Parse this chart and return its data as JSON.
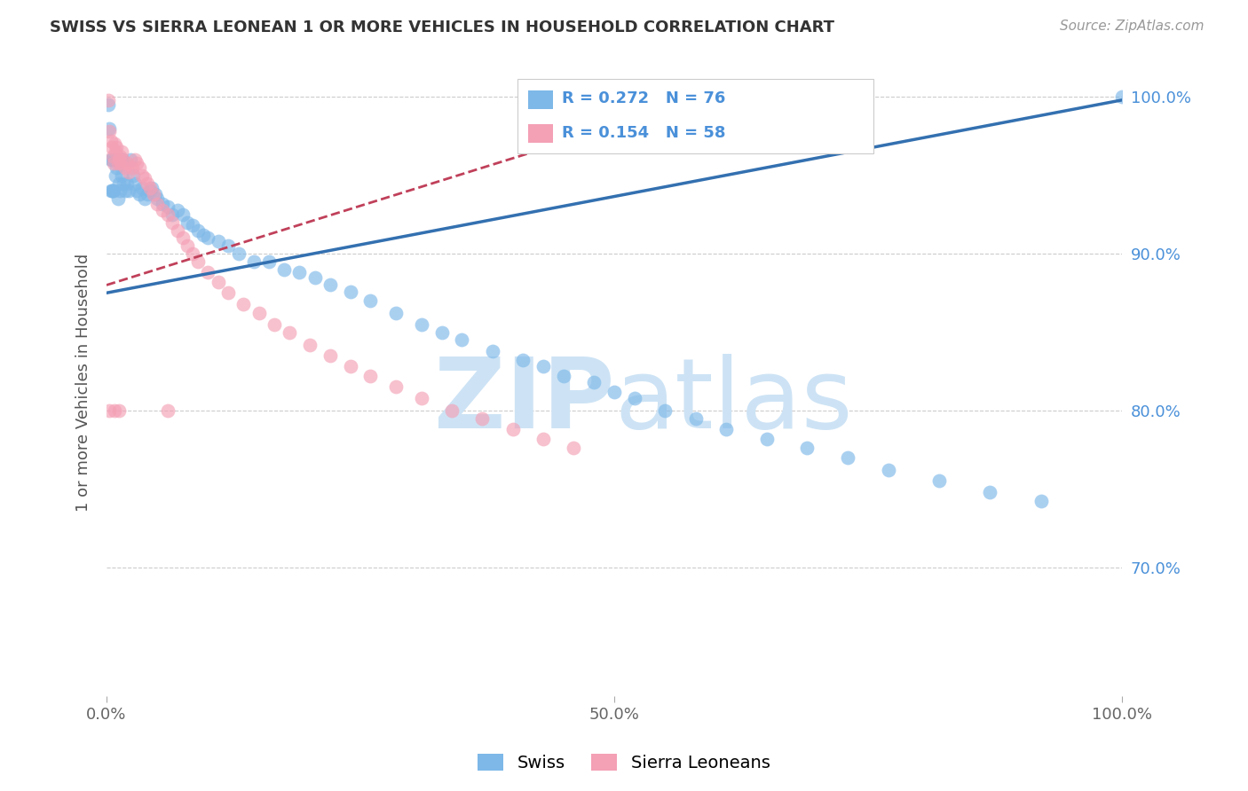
{
  "title": "SWISS VS SIERRA LEONEAN 1 OR MORE VEHICLES IN HOUSEHOLD CORRELATION CHART",
  "source": "Source: ZipAtlas.com",
  "ylabel": "1 or more Vehicles in Household",
  "xlim": [
    0.0,
    1.0
  ],
  "ylim": [
    0.618,
    1.018
  ],
  "yticks": [
    0.7,
    0.8,
    0.9,
    1.0
  ],
  "ytick_labels": [
    "70.0%",
    "80.0%",
    "90.0%",
    "100.0%"
  ],
  "xticks": [
    0.0,
    0.5,
    1.0
  ],
  "xtick_labels": [
    "0.0%",
    "50.0%",
    "100.0%"
  ],
  "legend_label_swiss": "Swiss",
  "legend_label_sierra": "Sierra Leoneans",
  "swiss_color": "#7db8e8",
  "sierra_color": "#f4a0b5",
  "swiss_line_color": "#3370b0",
  "sierra_line_color": "#c0405a",
  "watermark_color": "#cde3f5",
  "swiss_x": [
    0.002,
    0.003,
    0.004,
    0.004,
    0.005,
    0.005,
    0.006,
    0.007,
    0.008,
    0.009,
    0.01,
    0.011,
    0.012,
    0.013,
    0.014,
    0.015,
    0.016,
    0.017,
    0.018,
    0.02,
    0.022,
    0.024,
    0.026,
    0.028,
    0.03,
    0.032,
    0.035,
    0.038,
    0.04,
    0.043,
    0.045,
    0.048,
    0.05,
    0.055,
    0.06,
    0.065,
    0.07,
    0.075,
    0.08,
    0.085,
    0.09,
    0.095,
    0.1,
    0.11,
    0.12,
    0.13,
    0.145,
    0.16,
    0.175,
    0.19,
    0.205,
    0.22,
    0.24,
    0.26,
    0.285,
    0.31,
    0.33,
    0.35,
    0.38,
    0.41,
    0.43,
    0.45,
    0.48,
    0.5,
    0.52,
    0.55,
    0.58,
    0.61,
    0.65,
    0.69,
    0.73,
    0.77,
    0.82,
    0.87,
    0.92,
    1.0
  ],
  "swiss_y": [
    0.995,
    0.98,
    0.94,
    0.96,
    0.96,
    0.94,
    0.94,
    0.94,
    0.96,
    0.95,
    0.955,
    0.935,
    0.945,
    0.94,
    0.96,
    0.95,
    0.96,
    0.945,
    0.94,
    0.945,
    0.94,
    0.96,
    0.95,
    0.945,
    0.94,
    0.938,
    0.942,
    0.935,
    0.938,
    0.94,
    0.942,
    0.938,
    0.935,
    0.932,
    0.93,
    0.925,
    0.928,
    0.925,
    0.92,
    0.918,
    0.915,
    0.912,
    0.91,
    0.908,
    0.905,
    0.9,
    0.895,
    0.895,
    0.89,
    0.888,
    0.885,
    0.88,
    0.876,
    0.87,
    0.862,
    0.855,
    0.85,
    0.845,
    0.838,
    0.832,
    0.828,
    0.822,
    0.818,
    0.812,
    0.808,
    0.8,
    0.795,
    0.788,
    0.782,
    0.776,
    0.77,
    0.762,
    0.755,
    0.748,
    0.742,
    1.0
  ],
  "sierra_x": [
    0.002,
    0.003,
    0.004,
    0.005,
    0.006,
    0.007,
    0.008,
    0.009,
    0.01,
    0.011,
    0.012,
    0.013,
    0.014,
    0.015,
    0.016,
    0.018,
    0.02,
    0.022,
    0.025,
    0.028,
    0.03,
    0.032,
    0.035,
    0.038,
    0.04,
    0.043,
    0.046,
    0.05,
    0.055,
    0.06,
    0.065,
    0.07,
    0.075,
    0.08,
    0.085,
    0.09,
    0.1,
    0.11,
    0.12,
    0.135,
    0.15,
    0.165,
    0.18,
    0.2,
    0.22,
    0.24,
    0.26,
    0.285,
    0.31,
    0.34,
    0.37,
    0.4,
    0.43,
    0.46,
    0.06,
    0.008,
    0.012,
    0.003
  ],
  "sierra_y": [
    0.998,
    0.978,
    0.972,
    0.968,
    0.962,
    0.958,
    0.97,
    0.965,
    0.968,
    0.958,
    0.96,
    0.962,
    0.958,
    0.965,
    0.96,
    0.955,
    0.958,
    0.952,
    0.955,
    0.96,
    0.958,
    0.955,
    0.95,
    0.948,
    0.945,
    0.942,
    0.938,
    0.932,
    0.928,
    0.925,
    0.92,
    0.915,
    0.91,
    0.905,
    0.9,
    0.895,
    0.888,
    0.882,
    0.875,
    0.868,
    0.862,
    0.855,
    0.85,
    0.842,
    0.835,
    0.828,
    0.822,
    0.815,
    0.808,
    0.8,
    0.795,
    0.788,
    0.782,
    0.776,
    0.8,
    0.8,
    0.8,
    0.8
  ]
}
